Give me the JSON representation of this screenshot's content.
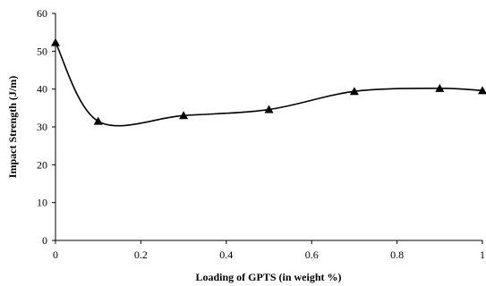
{
  "chart_data": {
    "type": "line",
    "title": "",
    "xlabel": "Loading of GPTS (in weight %)",
    "ylabel": "Impact Strength (J/m)",
    "xlim": [
      0,
      1
    ],
    "ylim": [
      0,
      60
    ],
    "x_ticks": [
      0,
      0.2,
      0.4,
      0.6,
      0.8,
      1
    ],
    "x_tick_labels": [
      "0",
      "0.2",
      "0.4",
      "0.6",
      "0.8",
      "1"
    ],
    "y_ticks": [
      0,
      10,
      20,
      30,
      40,
      50,
      60
    ],
    "y_tick_labels": [
      "0",
      "10",
      "20",
      "30",
      "40",
      "50",
      "60"
    ],
    "grid": false,
    "legend": "none",
    "marker": "triangle",
    "line_style": "smoothed",
    "series": [
      {
        "x": [
          0,
          0.1,
          0.3,
          0.5,
          0.7,
          0.9,
          1.0
        ],
        "values": [
          52.3,
          31.5,
          33.0,
          34.6,
          39.4,
          40.2,
          39.6
        ]
      }
    ],
    "colors": {
      "line": "#000000",
      "marker": "#000000",
      "axis": "#000000"
    }
  }
}
